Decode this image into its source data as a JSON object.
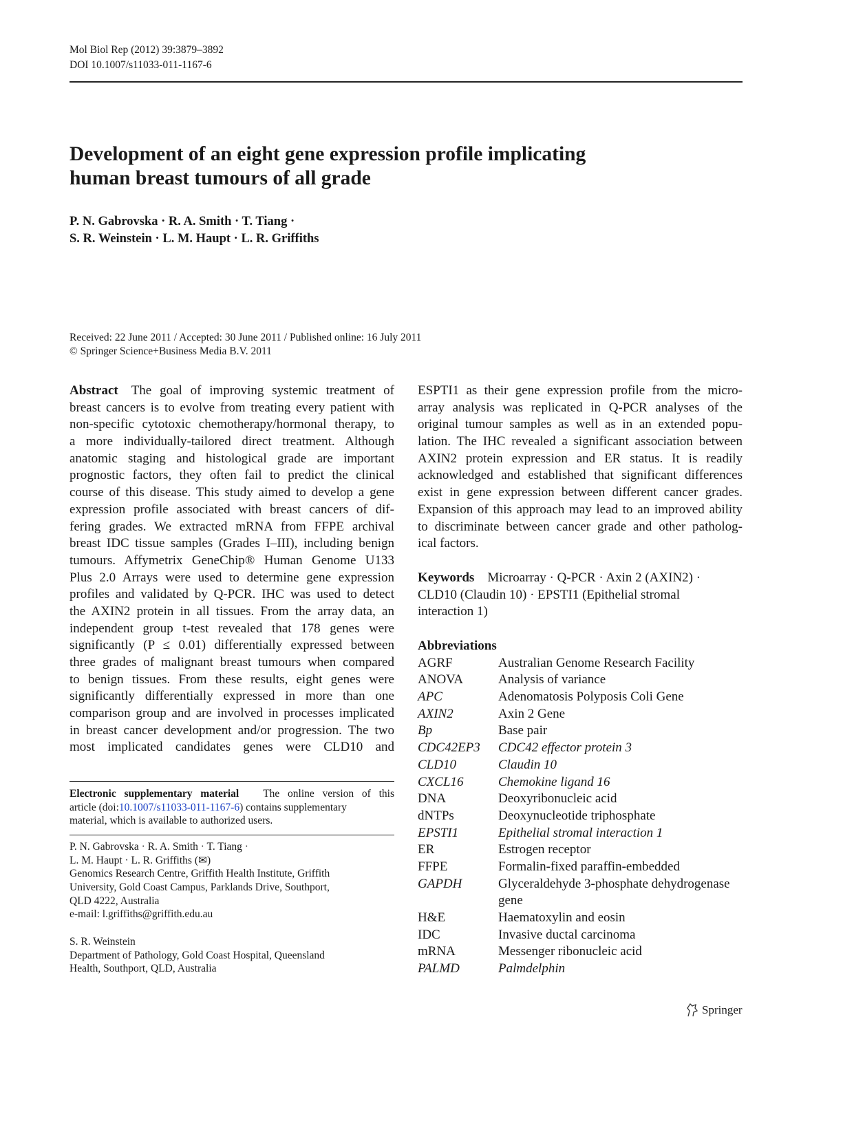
{
  "header": {
    "journal_line": "Mol Biol Rep (2012) 39:3879–3892",
    "doi_line": "DOI 10.1007/s11033-011-1167-6"
  },
  "title": {
    "lines": [
      "Development of an eight gene expression profile implicating",
      "human breast tumours of all grade"
    ]
  },
  "authors": {
    "lines": [
      "P. N. Gabrovska · R. A. Smith · T. Tiang ·",
      "S. R. Weinstein · L. M. Haupt · L. R. Griffiths"
    ]
  },
  "dates": {
    "received": "Received: 22 June 2011 / Accepted: 30 June 2011 / Published online: 16 July 2011",
    "copyright": "© Springer Science+Business Media B.V. 2011"
  },
  "abstract": {
    "heading": "Abstract",
    "lines": [
      "The goal of improving systemic treatment of",
      "breast cancers is to evolve from treating every patient with",
      "non-specific cytotoxic chemotherapy/hormonal therapy, to",
      "a more individually-tailored direct treatment. Although",
      "anatomic staging and histological grade are important",
      "prognostic factors, they often fail to predict the clinical",
      "course of this disease. This study aimed to develop a gene",
      "expression profile associated with breast cancers of dif-",
      "fering grades. We extracted mRNA from FFPE archival",
      "breast IDC tissue samples (Grades I–III), including benign",
      "tumours. Affymetrix GeneChip® Human Genome U133",
      "Plus 2.0 Arrays were used to determine gene expression",
      "profiles and validated by Q-PCR. IHC was used to detect",
      "the AXIN2 protein in all tissues. From the array data, an",
      "independent group t-test revealed that 178 genes were",
      "significantly (P ≤ 0.01) differentially expressed between",
      "three grades of malignant breast tumours when compared",
      "to benign tissues. From these results, eight genes were",
      "significantly differentially expressed in more than one",
      "comparison group and are involved in processes implicated",
      "in breast cancer development and/or progression. The two",
      "most implicated candidates genes were CLD10 and"
    ],
    "continued_lines": [
      "ESPTI1 as their gene expression profile from the micro-",
      "array analysis was replicated in Q-PCR analyses of the",
      "original tumour samples as well as in an extended popu-",
      "lation. The IHC revealed a significant association between",
      "AXIN2 protein expression and ER status. It is readily",
      "acknowledged and established that significant differences",
      "exist in gene expression between different cancer grades.",
      "Expansion of this approach may lead to an improved ability",
      "to discriminate between cancer grade and other patholog-",
      "ical factors."
    ]
  },
  "keywords": {
    "heading": "Keywords",
    "lines": [
      "Microarray · Q-PCR · Axin 2 (AXIN2) ·",
      "CLD10 (Claudin 10) · EPSTI1 (Epithelial stromal",
      "interaction 1)"
    ]
  },
  "abbreviations": {
    "heading": "Abbreviations",
    "items": [
      {
        "abbr": "AGRF",
        "def": "Australian Genome Research Facility",
        "italic": false
      },
      {
        "abbr": "ANOVA",
        "def": "Analysis of variance",
        "italic": false
      },
      {
        "abbr": "APC",
        "def": "Adenomatosis Polyposis Coli Gene",
        "italic": false,
        "abbr_italic": true
      },
      {
        "abbr": "AXIN2",
        "def": "Axin 2 Gene",
        "italic": false,
        "abbr_italic": true
      },
      {
        "abbr": "Bp",
        "def": "Base pair",
        "italic": false,
        "abbr_italic": true
      },
      {
        "abbr": "CDC42EP3",
        "def": "CDC42 effector protein 3",
        "italic": true
      },
      {
        "abbr": "CLD10",
        "def": "Claudin 10",
        "italic": true
      },
      {
        "abbr": "CXCL16",
        "def": "Chemokine ligand 16",
        "italic": true
      },
      {
        "abbr": "DNA",
        "def": "Deoxyribonucleic acid",
        "italic": false
      },
      {
        "abbr": "dNTPs",
        "def": "Deoxynucleotide triphosphate",
        "italic": false
      },
      {
        "abbr": "EPSTI1",
        "def": "Epithelial stromal interaction 1",
        "italic": true
      },
      {
        "abbr": "ER",
        "def": "Estrogen receptor",
        "italic": false
      },
      {
        "abbr": "FFPE",
        "def": "Formalin-fixed paraffin-embedded",
        "italic": false
      },
      {
        "abbr": "GAPDH",
        "def": "Glyceraldehyde 3-phosphate dehydrogenase",
        "def2": "gene",
        "italic": false,
        "abbr_italic": true
      },
      {
        "abbr": "H&E",
        "def": "Haematoxylin and eosin",
        "italic": false
      },
      {
        "abbr": "IDC",
        "def": "Invasive ductal carcinoma",
        "italic": false
      },
      {
        "abbr": "mRNA",
        "def": "Messenger ribonucleic acid",
        "italic": false
      },
      {
        "abbr": "PALMD",
        "def": "Palmdelphin",
        "italic": true
      }
    ]
  },
  "footnote": {
    "esm_heading": "Electronic supplementary material",
    "esm_line1": "The online version of this",
    "esm_line2_pre": "article (doi:",
    "esm_link": "10.1007/s11033-011-1167-6",
    "esm_line2_post": ") contains supplementary",
    "esm_line3": "material, which is available to authorized users.",
    "affil1_lines": [
      "P. N. Gabrovska · R. A. Smith · T. Tiang ·",
      "L. M. Haupt · L. R. Griffiths (✉)",
      "Genomics Research Centre, Griffith Health Institute, Griffith",
      "University, Gold Coast Campus, Parklands Drive, Southport,",
      "QLD 4222, Australia",
      "e-mail: l.griffiths@griffith.edu.au"
    ],
    "affil2_lines": [
      "S. R. Weinstein",
      "Department of Pathology, Gold Coast Hospital, Queensland",
      "Health, Southport, QLD, Australia"
    ]
  },
  "publisher": {
    "name": "Springer",
    "icon": "springer-horse-icon"
  },
  "colors": {
    "link": "#1a3fc4",
    "text": "#1a1a1a"
  }
}
